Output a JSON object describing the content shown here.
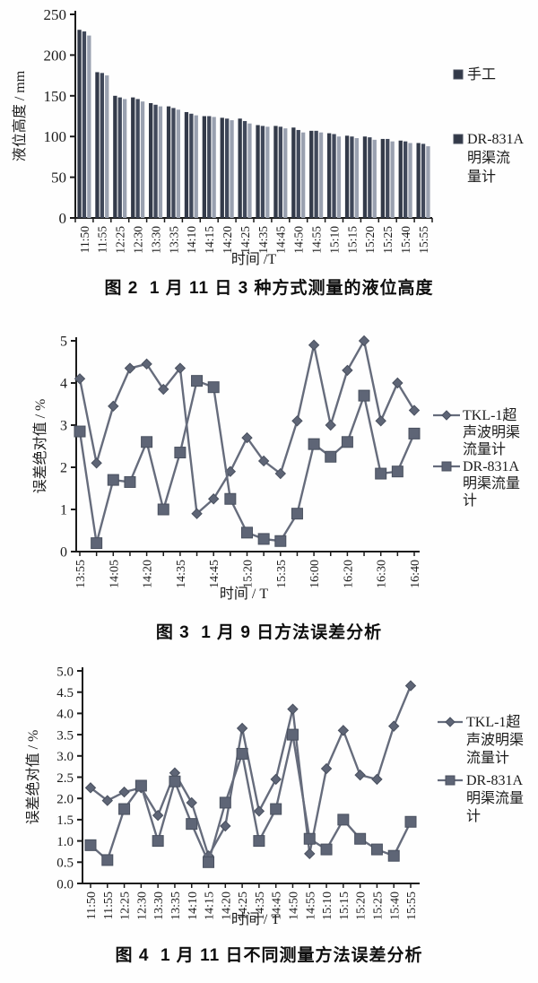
{
  "colors": {
    "axis": "#1b1b1b",
    "text": "#1b1b1b",
    "line": "#666c7c",
    "marker_fill": "#5e6576",
    "marker_edge": "#49505f",
    "bar_dark1": "#333a49",
    "bar_dark2": "#40485a",
    "bar_light": "#9aa1b0"
  },
  "chart_data": [
    {
      "id": "fig2",
      "type": "bar",
      "title": "图 2  1 月 11 日 3 种方式测量的液位高度",
      "xlabel": "时间 /T",
      "ylabel": "液位高度 / mm",
      "ylim": [
        0,
        250
      ],
      "ytick_labels": [
        "0",
        "50",
        "100",
        "150",
        "200",
        "250"
      ],
      "grid": false,
      "legend_position": "right",
      "categories": [
        "11:50",
        "11:55",
        "12:25",
        "12:30",
        "13:30",
        "13:35",
        "14:10",
        "14:15",
        "14:20",
        "14:25",
        "14:35",
        "14:45",
        "14:50",
        "14:55",
        "15:10",
        "15:15",
        "15:20",
        "15:25",
        "15:40",
        "15:55"
      ],
      "series": [
        {
          "name": "手工",
          "values": [
            231,
            179,
            150,
            148,
            141,
            137,
            130,
            125,
            123,
            122,
            114,
            113,
            111,
            107,
            104,
            101,
            100,
            97,
            95,
            92
          ]
        },
        {
          "name": "",
          "values": [
            229,
            178,
            148,
            146,
            139,
            135,
            128,
            125,
            122,
            119,
            113,
            112,
            108,
            107,
            103,
            100,
            99,
            97,
            94,
            91
          ]
        },
        {
          "name": "DR-831A明渠流量计",
          "values": [
            224,
            175,
            146,
            143,
            137,
            133,
            126,
            124,
            120,
            116,
            112,
            110,
            105,
            105,
            100,
            98,
            96,
            94,
            92,
            88
          ]
        }
      ],
      "bar_colors": [
        "#333a49",
        "#40485a",
        "#9aa1b0"
      ],
      "legend": [
        {
          "marker": "square",
          "lines": [
            "手工"
          ]
        },
        {
          "marker": "square",
          "lines": [
            "DR-831A",
            "明渠流",
            "量计"
          ]
        }
      ]
    },
    {
      "id": "fig3",
      "type": "line",
      "title": "图 3  1 月 9 日方法误差分析",
      "xlabel": "时间 / T",
      "ylabel": "误差绝对值 / %",
      "ylim": [
        0,
        5
      ],
      "ytick_labels": [
        "0",
        "1",
        "2",
        "3",
        "4",
        "5"
      ],
      "grid": false,
      "legend_position": "right",
      "categories": [
        "13:55",
        "",
        "14:05",
        "",
        "14:20",
        "",
        "14:35",
        "",
        "14:45",
        "",
        "15:20",
        "",
        "15:35",
        "",
        "16:00",
        "",
        "16:20",
        "",
        "16:30",
        "",
        "16:40"
      ],
      "series": [
        {
          "name": "TKL-1超声波明渠流量计",
          "marker": "diamond",
          "values": [
            4.1,
            2.1,
            3.45,
            4.35,
            4.45,
            3.85,
            4.35,
            0.9,
            1.25,
            1.9,
            2.7,
            2.15,
            1.85,
            3.1,
            4.9,
            3.0,
            4.3,
            5.0,
            3.1,
            4.0,
            3.35
          ]
        },
        {
          "name": "DR-831A明渠流量计",
          "marker": "square",
          "values": [
            2.85,
            0.2,
            1.7,
            1.65,
            2.6,
            1.0,
            2.35,
            4.05,
            3.9,
            1.25,
            0.45,
            0.3,
            0.25,
            0.9,
            2.55,
            2.25,
            2.6,
            3.7,
            1.85,
            1.9,
            2.8
          ]
        }
      ],
      "legend": [
        {
          "marker": "diamond",
          "lines": [
            "TKL-1超",
            "声波明渠",
            "流量计"
          ]
        },
        {
          "marker": "square",
          "lines": [
            "DR-831A",
            "明渠流量",
            "计"
          ]
        }
      ]
    },
    {
      "id": "fig4",
      "type": "line",
      "title": "图 4  1 月 11 日不同测量方法误差分析",
      "xlabel": "时间 / T",
      "ylabel": "误差绝对值 / %",
      "ylim": [
        0,
        5
      ],
      "ytick_labels": [
        "0.0",
        "0.5",
        "1.0",
        "1.5",
        "2.0",
        "2.5",
        "3.0",
        "3.5",
        "4.0",
        "4.5",
        "5.0"
      ],
      "grid": false,
      "legend_position": "right",
      "categories": [
        "11:50",
        "11:55",
        "12:25",
        "12:30",
        "13:30",
        "13:35",
        "14:10",
        "14:15",
        "14:20",
        "14:25",
        "14:35",
        "14:45",
        "14:50",
        "14:55",
        "15:10",
        "15:15",
        "15:20",
        "15:25",
        "15:40",
        "15:55"
      ],
      "series": [
        {
          "name": "TKL-1超声波明渠流量计",
          "marker": "diamond",
          "values": [
            2.25,
            1.95,
            2.15,
            2.25,
            1.6,
            2.6,
            1.9,
            0.65,
            1.35,
            3.65,
            1.7,
            2.45,
            4.1,
            0.7,
            2.7,
            3.6,
            2.55,
            2.45,
            3.7,
            4.65
          ]
        },
        {
          "name": "DR-831A明渠流量计",
          "marker": "square",
          "values": [
            0.9,
            0.55,
            1.75,
            2.3,
            1.0,
            2.4,
            1.4,
            0.5,
            1.9,
            3.05,
            1.0,
            1.75,
            3.5,
            1.05,
            0.8,
            1.5,
            1.05,
            0.8,
            0.65,
            1.45
          ]
        }
      ],
      "legend": [
        {
          "marker": "diamond",
          "lines": [
            "TKL-1超",
            "声波明渠",
            "流量计"
          ]
        },
        {
          "marker": "square",
          "lines": [
            "DR-831A",
            "明渠流量",
            "计"
          ]
        }
      ]
    }
  ]
}
